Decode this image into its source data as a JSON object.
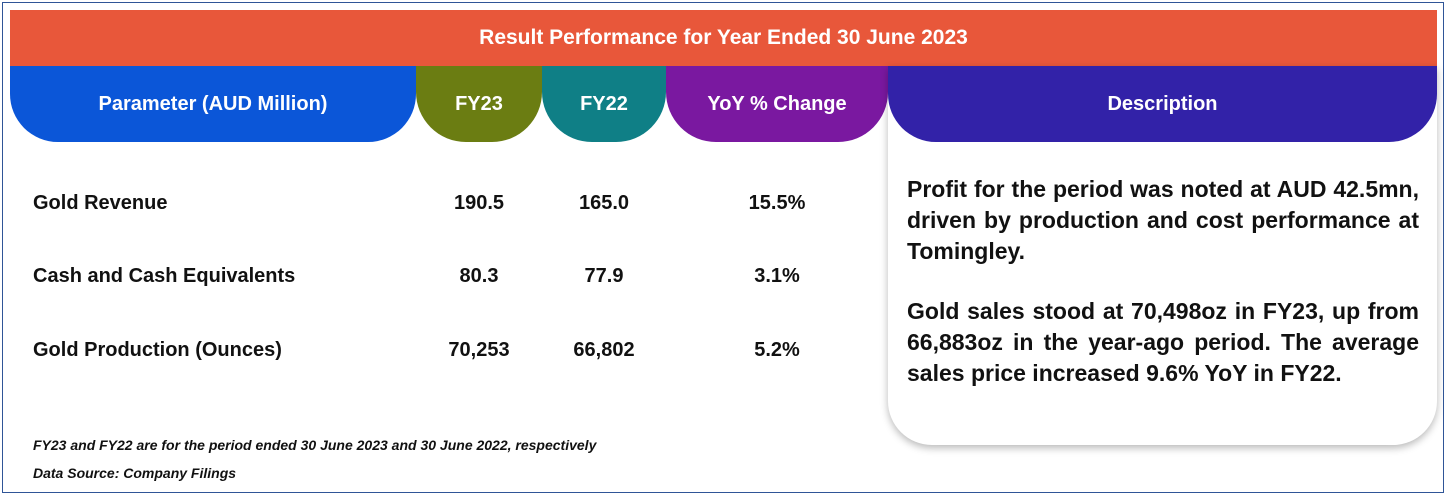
{
  "title": "Result Performance for Year Ended 30 June 2023",
  "headers": {
    "parameter": "Parameter (AUD Million)",
    "fy23": "FY23",
    "fy22": "FY22",
    "yoy": "YoY % Change",
    "description": "Description"
  },
  "rows": [
    {
      "label": "Gold Revenue",
      "fy23": "190.5",
      "fy22": "165.0",
      "yoy": "15.5%"
    },
    {
      "label": "Cash and Cash Equivalents",
      "fy23": "80.3",
      "fy22": "77.9",
      "yoy": "3.1%"
    },
    {
      "label": "Gold Production (Ounces)",
      "fy23": "70,253",
      "fy22": "66,802",
      "yoy": "5.2%"
    }
  ],
  "description": {
    "paragraph1": "Profit for the period was noted at AUD 42.5mn, driven by production and cost performance at Tomingley.",
    "paragraph2": "Gold sales stood at 70,498oz in FY23, up from 66,883oz in the year-ago period. The average sales price increased 9.6% YoY in FY22."
  },
  "notes": {
    "footnote": "FY23 and FY22 are for the period ended 30 June 2023 and 30 June 2022, respectively",
    "source": "Data Source: Company Filings"
  },
  "colors": {
    "banner": "#e8573a",
    "parameter_header": "#0b56d8",
    "fy23_header": "#6b7d12",
    "fy22_header": "#0f7f86",
    "yoy_header": "#7a18a0",
    "description_header": "#3222a8",
    "frame_border": "#2f5597"
  }
}
